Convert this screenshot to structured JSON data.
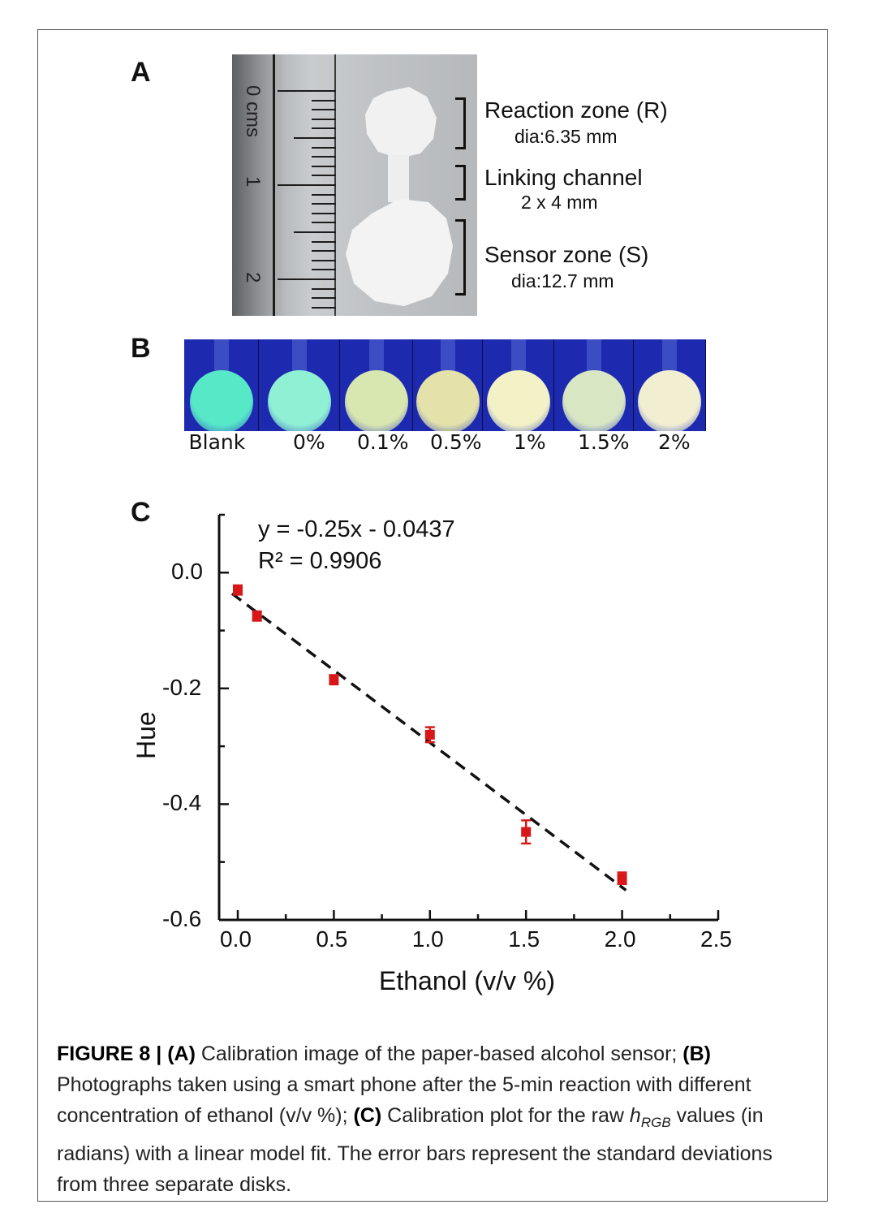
{
  "panels": {
    "a": "A",
    "b": "B",
    "c": "C"
  },
  "panel_a": {
    "ruler_numbers": [
      "0 cms",
      "1",
      "2"
    ],
    "zones": [
      {
        "name": "Reaction zone (R)",
        "detail": "dia:6.35 mm"
      },
      {
        "name": "Linking channel",
        "detail": "2 x 4 mm"
      },
      {
        "name": "Sensor zone (S)",
        "detail": "dia:12.7 mm"
      }
    ]
  },
  "panel_b": {
    "labels": [
      "Blank",
      "0%",
      "0.1%",
      "0.5%",
      "1%",
      "1.5%",
      "2%"
    ],
    "disk_colors": [
      "#57e8c8",
      "#8ff0d4",
      "#d8e6b0",
      "#e4e2aa",
      "#f3f2c6",
      "#d8e6c4",
      "#f2eed2"
    ],
    "background_color": "#1d2ab0"
  },
  "chart_data": {
    "type": "scatter",
    "xlabel": "Ethanol (v/v %)",
    "ylabel": "Hue",
    "xlim": [
      0,
      2.5
    ],
    "ylim": [
      -0.6,
      0.1
    ],
    "x_ticks": [
      "0.0",
      "0.5",
      "1.0",
      "1.5",
      "2.0",
      "2.5"
    ],
    "y_ticks": [
      "0.0",
      "-0.2",
      "-0.4",
      "-0.6"
    ],
    "series": [
      {
        "x": [
          0,
          0.1,
          0.5,
          1.0,
          1.5,
          2.0
        ],
        "y": [
          -0.03,
          -0.075,
          -0.185,
          -0.28,
          -0.448,
          -0.528
        ],
        "error": [
          0.008,
          0.008,
          0.008,
          0.013,
          0.02,
          0.01
        ],
        "color": "#d81818"
      }
    ],
    "fit": {
      "slope": -0.25,
      "intercept": -0.0437,
      "x_range": [
        -0.03,
        2.02
      ],
      "style": "dashed",
      "color": "#111111"
    },
    "equation": "y = -0.25x - 0.0437",
    "r_squared": "R² = 0.9906",
    "grid": false
  },
  "caption": {
    "figure_label": "FIGURE 8 |",
    "part_a_label": "(A)",
    "part_a_text": "Calibration image of the paper-based alcohol sensor;",
    "part_b_label": "(B)",
    "part_b_text": "Photographs taken using a smart phone after the 5-min reaction with different concentration of ethanol (v/v %);",
    "part_c_label": "(C)",
    "part_c_text_1": "Calibration plot for the raw",
    "symbol_h": "h",
    "symbol_sub": "RGB",
    "part_c_text_2": "values (in radians) with a linear model fit. The error bars represent the standard deviations from three separate disks."
  }
}
